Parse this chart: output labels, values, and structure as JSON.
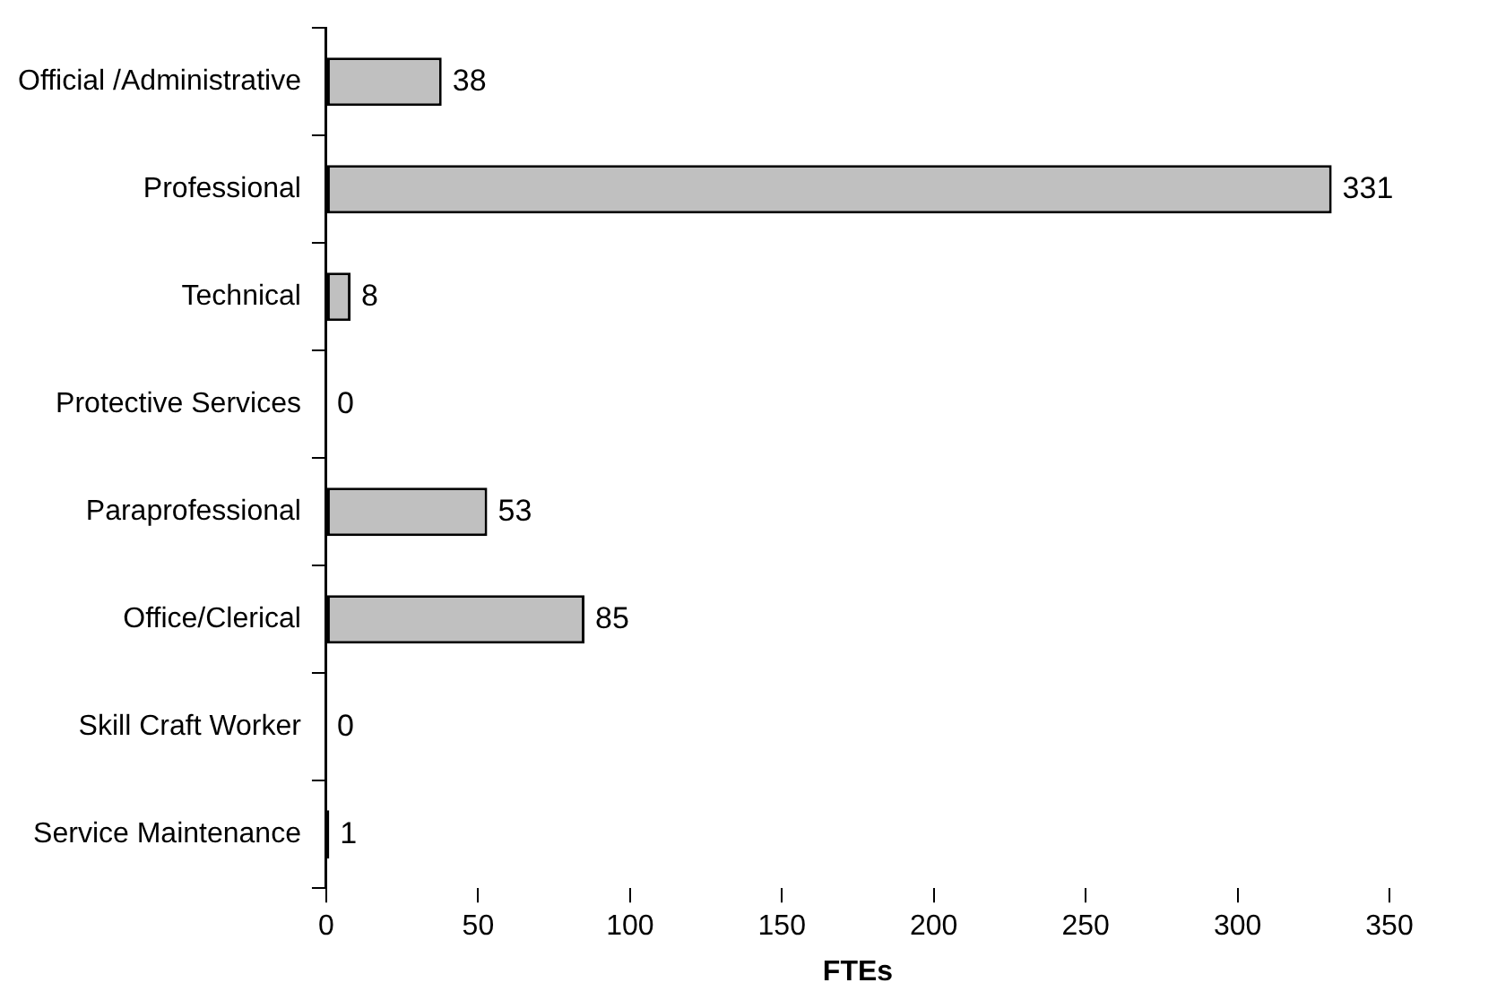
{
  "chart_data": {
    "type": "bar",
    "orientation": "horizontal",
    "xlabel": "FTEs",
    "categories": [
      "Official /Administrative",
      "Professional",
      "Technical",
      "Protective Services",
      "Paraprofessional",
      "Office/Clerical",
      "Skill Craft Worker",
      "Service Maintenance"
    ],
    "values": [
      38,
      331,
      8,
      0,
      53,
      85,
      0,
      1
    ],
    "colors": [
      "#c0c0c0",
      "#c0c0c0",
      "#c0c0c0",
      "#c0c0c0",
      "#c0c0c0",
      "#c0c0c0",
      "#c0c0c0",
      "#000000"
    ],
    "xlim": [
      0,
      350
    ],
    "xticks": [
      0,
      50,
      100,
      150,
      200,
      250,
      300,
      350
    ],
    "grid": false,
    "legend": false,
    "data_labels": true
  }
}
